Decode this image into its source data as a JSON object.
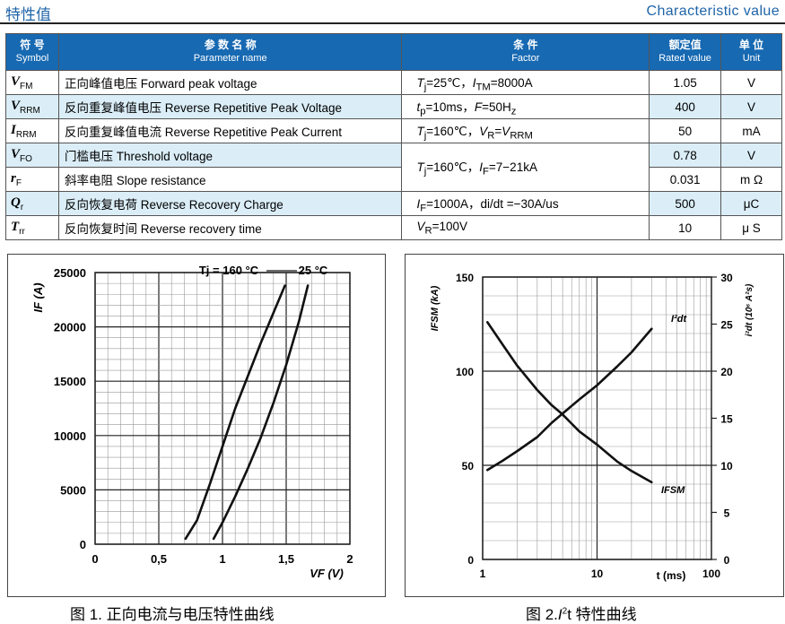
{
  "header": {
    "title_cn": "特性值",
    "title_en": "Characteristic value"
  },
  "table": {
    "head": {
      "symbol_cn": "符 号",
      "symbol_en": "Symbol",
      "param_cn": "参 数 名 称",
      "param_en": "Parameter name",
      "cond_cn": "条 件",
      "cond_en": "Factor",
      "rated_cn": "额定值",
      "rated_en": "Rated value",
      "unit_cn": "单 位",
      "unit_en": "Unit"
    },
    "rows": [
      {
        "sym": "V",
        "sub": "FM",
        "name": "正向峰值电压 Forward peak voltage",
        "value": "1.05",
        "unit": "V"
      },
      {
        "sym": "V",
        "sub": "RRM",
        "name": "反向重复峰值电压 Reverse Repetitive Peak Voltage",
        "value": "400",
        "unit": "V"
      },
      {
        "sym": "I",
        "sub": "RRM",
        "name": "反向重复峰值电流 Reverse Repetitive Peak Current",
        "value": "50",
        "unit": "mA"
      },
      {
        "sym": "V",
        "sub": "FO",
        "name": "门槛电压 Threshold voltage",
        "value": "0.78",
        "unit": "V"
      },
      {
        "sym": "r",
        "sub": "F",
        "name": "斜率电阻 Slope resistance",
        "value": "0.031",
        "unit": "m Ω"
      },
      {
        "sym": "Q",
        "sub": "r",
        "name": "反向恢复电荷 Reverse Recovery Charge",
        "value": "500",
        "unit": "μC"
      },
      {
        "sym": "T",
        "sub": "rr",
        "name": "反向恢复时间 Reverse recovery time",
        "value": "10",
        "unit": "μ S"
      }
    ],
    "conditions": {
      "c1": "Tj=25℃，ITM=8000A",
      "c2": "tp=10ms，F=50Hz",
      "c3": "Tj=160℃，VR=VRRM",
      "c4": "Tj=160℃，IF=7−21kA",
      "c5": "IF=1000A，di/dt =−30A/us",
      "c6": "VR=100V"
    }
  },
  "figure1": {
    "caption": "图 1. 正向电流与电压特性曲线",
    "ylabel": "IF (A)",
    "xlabel": "VF (V)",
    "legend_160": "Tj = 160 °C",
    "legend_25": "25 °C",
    "x_ticks": [
      "0",
      "0,5",
      "1",
      "1,5",
      "2"
    ],
    "y_ticks": [
      "0",
      "5000",
      "10000",
      "15000",
      "20000",
      "25000"
    ]
  },
  "figure2": {
    "caption_pre": "图 2.",
    "caption_sym": "I",
    "caption_post": "t 特性曲线",
    "ylabel_left": "IFSM (kA)",
    "ylabel_right": "i²dt (10⁶ A²s)",
    "xlabel": "t (ms)",
    "label_i2t": "I²dt",
    "label_ifsm": "IFSM",
    "x_ticks": [
      "1",
      "10",
      "100"
    ],
    "y_left_ticks": [
      "0",
      "50",
      "100",
      "150"
    ],
    "y_right_ticks": [
      "0",
      "5",
      "10",
      "15",
      "20",
      "25",
      "30"
    ]
  },
  "chart_data": [
    {
      "type": "line",
      "title": "",
      "xlabel": "VF (V)",
      "ylabel": "IF (A)",
      "xlim": [
        0,
        2
      ],
      "ylim": [
        0,
        25000
      ],
      "grid": true,
      "series": [
        {
          "name": "Tj = 160 °C",
          "x": [
            0.71,
            0.8,
            0.9,
            1.0,
            1.1,
            1.2,
            1.3,
            1.4,
            1.49
          ],
          "y": [
            500,
            2200,
            5500,
            9000,
            12500,
            15500,
            18500,
            21300,
            23800
          ]
        },
        {
          "name": "25 °C",
          "x": [
            0.93,
            1.0,
            1.1,
            1.2,
            1.3,
            1.4,
            1.5,
            1.6,
            1.67
          ],
          "y": [
            500,
            2000,
            4400,
            7000,
            9800,
            13000,
            16500,
            20500,
            23800
          ]
        }
      ]
    },
    {
      "type": "line",
      "title": "",
      "xlabel": "t (ms)",
      "ylabel_left": "IFSM (kA)",
      "ylabel_right": "i²dt (10⁶ A²s)",
      "x_scale": "log",
      "xlim": [
        1,
        100
      ],
      "ylim_left": [
        0,
        150
      ],
      "ylim_right": [
        0,
        30
      ],
      "grid": true,
      "series": [
        {
          "name": "IFSM",
          "axis": "left",
          "x": [
            1.1,
            1.5,
            2,
            3,
            4,
            5,
            7,
            10,
            15,
            20,
            30
          ],
          "y": [
            126,
            114,
            103,
            90,
            82,
            77,
            68,
            61,
            52,
            47,
            41
          ]
        },
        {
          "name": "I²dt",
          "axis": "right",
          "x": [
            1.1,
            1.5,
            2,
            3,
            4,
            5,
            7,
            10,
            15,
            20,
            30
          ],
          "y": [
            9.5,
            10.5,
            11.5,
            13,
            14.5,
            15.5,
            17,
            18.5,
            20.5,
            22,
            24.5
          ]
        }
      ]
    }
  ]
}
